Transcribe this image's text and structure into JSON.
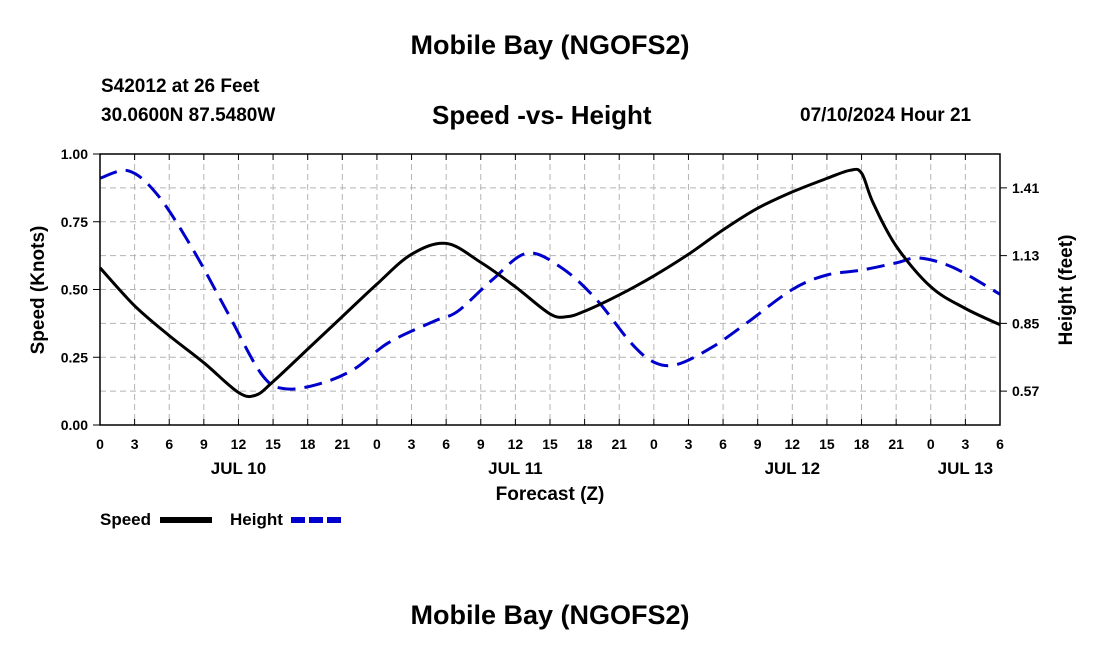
{
  "header": {
    "title": "Mobile Bay (NGOFS2)",
    "station": "S42012 at 26 Feet",
    "coords": "30.0600N  87.5480W",
    "subtitle": "Speed -vs- Height",
    "datetime": "07/10/2024 Hour 21",
    "bottom_title": "Mobile Bay (NGOFS2)"
  },
  "colors": {
    "speed": "#000000",
    "height": "#0000cc",
    "grid": "#b4b4b4"
  },
  "chart_data": {
    "type": "line",
    "xlabel": "Forecast (Z)",
    "ylabel_left": "Speed (Knots)",
    "ylabel_right": "Height (feet)",
    "x_unit": "hours since JUL 10 00Z",
    "xlim": [
      0,
      78
    ],
    "ylim_left": [
      0,
      1
    ],
    "ylim_right": [
      0.43,
      1.55
    ],
    "grid": true,
    "legend_position": "bottom-left",
    "x_ticks": [
      {
        "x": 0,
        "label": "0"
      },
      {
        "x": 3,
        "label": "3"
      },
      {
        "x": 6,
        "label": "6"
      },
      {
        "x": 9,
        "label": "9"
      },
      {
        "x": 12,
        "label": "12"
      },
      {
        "x": 15,
        "label": "15"
      },
      {
        "x": 18,
        "label": "18"
      },
      {
        "x": 21,
        "label": "21"
      },
      {
        "x": 24,
        "label": "0"
      },
      {
        "x": 27,
        "label": "3"
      },
      {
        "x": 30,
        "label": "6"
      },
      {
        "x": 33,
        "label": "9"
      },
      {
        "x": 36,
        "label": "12"
      },
      {
        "x": 39,
        "label": "15"
      },
      {
        "x": 42,
        "label": "18"
      },
      {
        "x": 45,
        "label": "21"
      },
      {
        "x": 48,
        "label": "0"
      },
      {
        "x": 51,
        "label": "3"
      },
      {
        "x": 54,
        "label": "6"
      },
      {
        "x": 57,
        "label": "9"
      },
      {
        "x": 60,
        "label": "12"
      },
      {
        "x": 63,
        "label": "15"
      },
      {
        "x": 66,
        "label": "18"
      },
      {
        "x": 69,
        "label": "21"
      },
      {
        "x": 72,
        "label": "0"
      },
      {
        "x": 75,
        "label": "3"
      },
      {
        "x": 78,
        "label": "6"
      }
    ],
    "day_labels": [
      {
        "x": 12,
        "label": "JUL 10"
      },
      {
        "x": 36,
        "label": "JUL 11"
      },
      {
        "x": 60,
        "label": "JUL 12"
      },
      {
        "x": 75,
        "label": "JUL 13"
      }
    ],
    "y_ticks_left": [
      {
        "y": 0,
        "label": "0.00"
      },
      {
        "y": 0.25,
        "label": "0.25"
      },
      {
        "y": 0.5,
        "label": "0.50"
      },
      {
        "y": 0.75,
        "label": "0.75"
      },
      {
        "y": 1,
        "label": "1.00"
      }
    ],
    "y_ticks_right": [
      {
        "y": 0.57,
        "label": "0.57"
      },
      {
        "y": 0.85,
        "label": "0.85"
      },
      {
        "y": 1.13,
        "label": "1.13"
      },
      {
        "y": 1.41,
        "label": "1.41"
      }
    ],
    "series": [
      {
        "name": "Speed",
        "axis": "left",
        "style": "solid",
        "x": [
          0,
          3,
          6,
          9,
          12,
          13.5,
          15,
          18,
          21,
          24,
          27,
          30,
          33,
          36,
          39,
          40.5,
          42,
          45,
          48,
          51,
          54,
          57,
          60,
          63,
          65,
          66,
          67,
          69,
          72,
          75,
          78
        ],
        "y": [
          0.58,
          0.44,
          0.33,
          0.23,
          0.12,
          0.11,
          0.16,
          0.28,
          0.4,
          0.52,
          0.63,
          0.67,
          0.6,
          0.51,
          0.41,
          0.4,
          0.42,
          0.48,
          0.55,
          0.63,
          0.72,
          0.8,
          0.86,
          0.91,
          0.94,
          0.93,
          0.82,
          0.66,
          0.51,
          0.43,
          0.37
        ]
      },
      {
        "name": "Height",
        "axis": "right",
        "style": "dashed",
        "x": [
          0,
          2.5,
          5,
          8,
          11,
          14,
          16,
          19,
          22,
          25,
          29,
          31,
          34,
          37,
          40,
          43,
          46,
          48,
          50,
          53,
          56,
          60,
          63,
          66,
          69,
          71,
          74,
          78
        ],
        "y": [
          1.45,
          1.48,
          1.38,
          1.16,
          0.9,
          0.64,
          0.58,
          0.6,
          0.66,
          0.77,
          0.86,
          0.9,
          1.03,
          1.14,
          1.08,
          0.95,
          0.77,
          0.69,
          0.68,
          0.75,
          0.85,
          0.99,
          1.05,
          1.07,
          1.1,
          1.12,
          1.08,
          0.97
        ]
      }
    ]
  }
}
